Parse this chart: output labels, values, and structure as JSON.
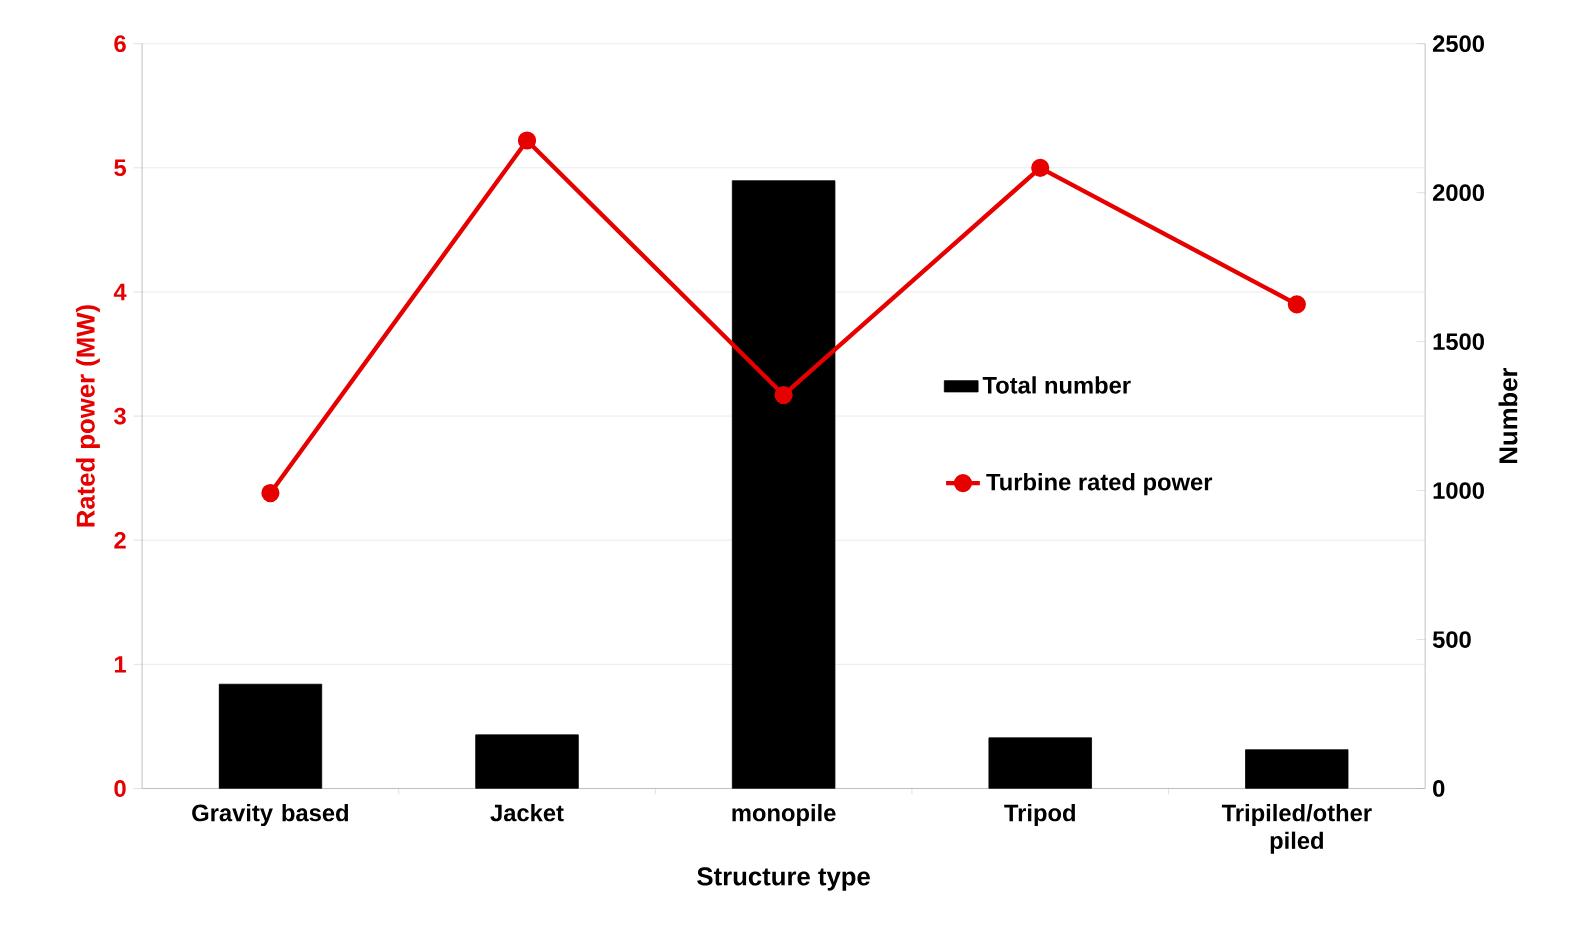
{
  "chart_data": {
    "type": "bar",
    "xlabel": "Structure type",
    "ylabel": "Rated power (MW)",
    "y2label": "Number",
    "categories": [
      "Gravity based",
      "Jacket",
      "monopile",
      "Tripod",
      "Tripiled/other piled"
    ],
    "series": [
      {
        "name": "Total number",
        "axis": "y2",
        "color": "#000000",
        "values": [
          350,
          180,
          2040,
          170,
          130
        ]
      },
      {
        "name": "Turbine rated power",
        "type": "line",
        "color": "#e60000",
        "marker": "circle",
        "values": [
          2.38,
          5.22,
          3.17,
          5.0,
          3.9
        ]
      }
    ],
    "ylim": [
      0,
      6
    ],
    "yticks": [
      0,
      1,
      2,
      3,
      4,
      5,
      6
    ],
    "y2lim": [
      0,
      2500
    ],
    "y2ticks": [
      0,
      500,
      1000,
      1500,
      2000,
      2500
    ],
    "grid": "y",
    "legend": "right"
  }
}
